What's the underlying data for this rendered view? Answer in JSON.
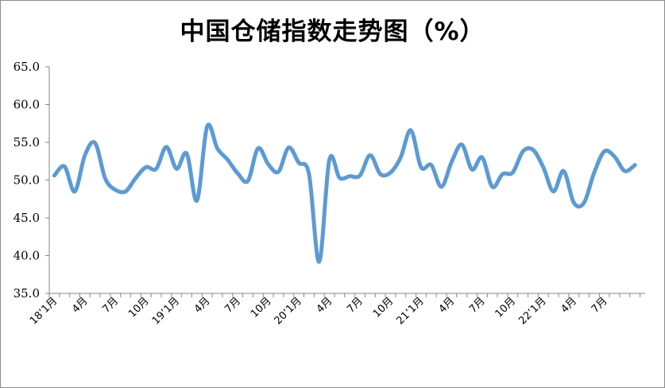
{
  "chart_data": {
    "type": "line",
    "title": "中国仓储指数走势图（%）",
    "xlabel": "",
    "ylabel": "",
    "ylim": [
      35,
      65
    ],
    "yticks": [
      "35.0",
      "40.0",
      "45.0",
      "50.0",
      "55.0",
      "60.0",
      "65.0"
    ],
    "grid": false,
    "legend": "none",
    "line_color": "#5b9bd5",
    "x_tick_labels": [
      {
        "index": 0,
        "label": "18’1月"
      },
      {
        "index": 3,
        "label": "4月"
      },
      {
        "index": 6,
        "label": "7月"
      },
      {
        "index": 9,
        "label": "10月"
      },
      {
        "index": 12,
        "label": "19’1月"
      },
      {
        "index": 15,
        "label": "4月"
      },
      {
        "index": 18,
        "label": "7月"
      },
      {
        "index": 21,
        "label": "10月"
      },
      {
        "index": 24,
        "label": "20’1月"
      },
      {
        "index": 27,
        "label": "4月"
      },
      {
        "index": 30,
        "label": "7月"
      },
      {
        "index": 33,
        "label": "10月"
      },
      {
        "index": 36,
        "label": "21’1月"
      },
      {
        "index": 39,
        "label": "4月"
      },
      {
        "index": 42,
        "label": "7月"
      },
      {
        "index": 45,
        "label": "10月"
      },
      {
        "index": 48,
        "label": "22’1月"
      },
      {
        "index": 51,
        "label": "4月"
      },
      {
        "index": 54,
        "label": "7月"
      }
    ],
    "series": [
      {
        "values": [
          50.6,
          51.8,
          48.5,
          53.3,
          54.9,
          50.2,
          48.7,
          48.5,
          50.3,
          51.7,
          51.5,
          54.4,
          51.5,
          53.5,
          47.3,
          57.1,
          54.2,
          52.7,
          50.9,
          49.9,
          54.2,
          52.1,
          51.1,
          54.3,
          52.3,
          50.8,
          39.2,
          52.7,
          50.3,
          50.5,
          50.6,
          53.3,
          50.8,
          51.0,
          53.0,
          56.6,
          51.7,
          52.0,
          49.1,
          52.4,
          54.7,
          51.4,
          53.0,
          49.1,
          50.8,
          51.0,
          53.8,
          54.0,
          51.7,
          48.5,
          51.2,
          47.0,
          47.0,
          51.0,
          53.8,
          53.1,
          51.2,
          52.0
        ]
      }
    ]
  }
}
